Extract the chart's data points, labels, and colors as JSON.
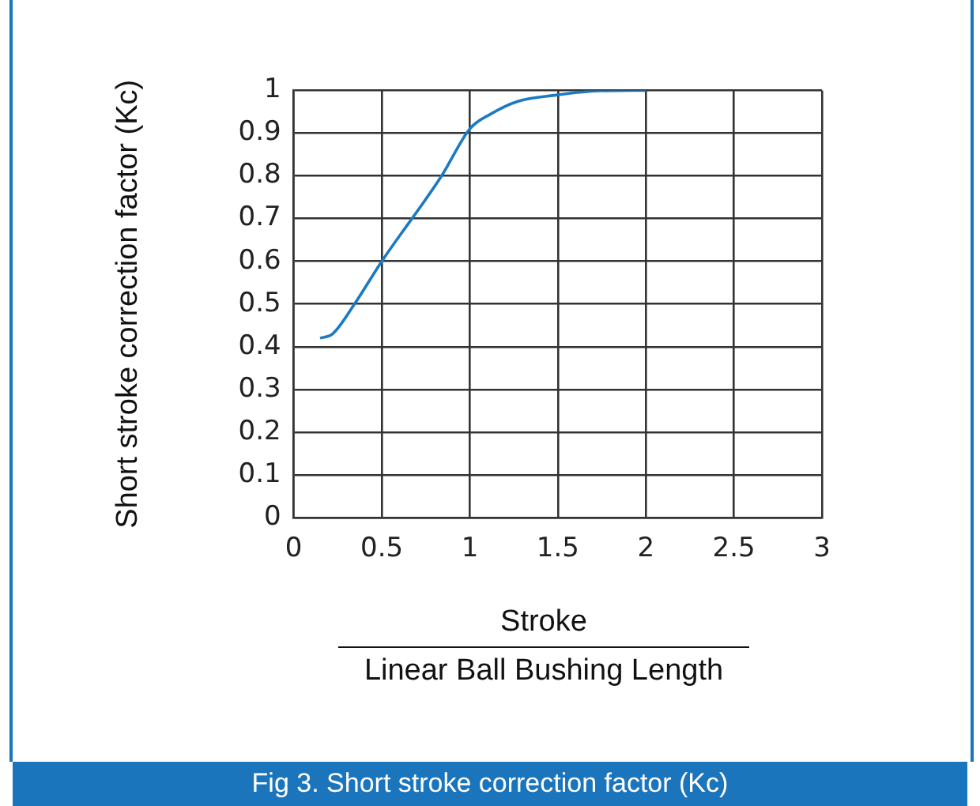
{
  "chart_data": {
    "type": "line",
    "xlabel": "Stroke",
    "ylabel": "Short stroke correction factor (Kc)",
    "annotations": [
      "Linear Ball Bushing Length",
      "Fig 3. Short stroke correction factor (Kc)"
    ],
    "series": [
      {
        "color": "#1b7ac4",
        "x": [
          0.15,
          0.22,
          0.345,
          0.5,
          0.84,
          1.0,
          1.12,
          1.27,
          1.49,
          1.73,
          2.0
        ],
        "values": [
          0.42,
          0.43,
          0.5,
          0.6,
          0.8,
          0.91,
          0.945,
          0.974,
          0.989,
          0.999,
          1.0
        ]
      }
    ],
    "xlim": [
      0,
      3
    ],
    "xticks": [
      0,
      0.5,
      1,
      1.5,
      2,
      2.5,
      3
    ],
    "ylim": [
      0,
      1
    ],
    "yticks": [
      0,
      0.1,
      0.2,
      0.3,
      0.4,
      0.5,
      0.6,
      0.7,
      0.8,
      0.9,
      1
    ],
    "grid": true,
    "legend": false,
    "marker": "none",
    "line_style": "solid"
  }
}
